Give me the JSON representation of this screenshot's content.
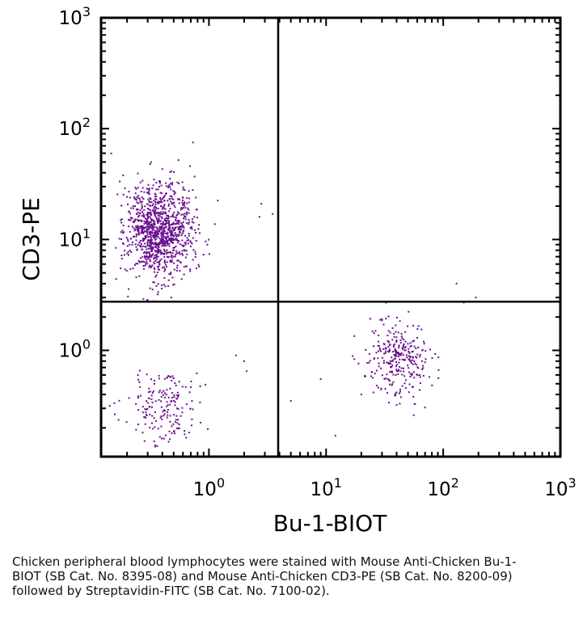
{
  "chart_data": {
    "type": "scatter",
    "title": "",
    "xlabel": "Bu-1-BIOT",
    "ylabel": "CD3-PE",
    "x_scale": "log",
    "y_scale": "log",
    "xlim": [
      0.12,
      1000
    ],
    "ylim": [
      0.11,
      1000
    ],
    "x_ticks": [
      {
        "value": 1,
        "base": "10",
        "exp": "0"
      },
      {
        "value": 10,
        "base": "10",
        "exp": "1"
      },
      {
        "value": 100,
        "base": "10",
        "exp": "2"
      },
      {
        "value": 1000,
        "base": "10",
        "exp": "3"
      }
    ],
    "y_ticks": [
      {
        "value": 1,
        "base": "10",
        "exp": "0"
      },
      {
        "value": 10,
        "base": "10",
        "exp": "1"
      },
      {
        "value": 100,
        "base": "10",
        "exp": "2"
      },
      {
        "value": 1000,
        "base": "10",
        "exp": "3"
      }
    ],
    "quadrant_gates": {
      "x": 3.9,
      "y": 2.75
    },
    "grid": false,
    "point_color": "#6a0f8e",
    "populations": [
      {
        "population": "CD3+ Bu-1-",
        "center": [
          0.38,
          12
        ],
        "spread_log10": [
          0.14,
          0.22
        ],
        "count": 1100
      },
      {
        "population": "CD3- Bu-1+",
        "center": [
          42,
          0.85
        ],
        "spread_log10": [
          0.14,
          0.17
        ],
        "count": 300
      },
      {
        "population": "CD3- Bu-1-",
        "center": [
          0.42,
          0.32
        ],
        "spread_log10": [
          0.17,
          0.17
        ],
        "count": 180
      }
    ],
    "outliers": [
      [
        0.55,
        52
      ],
      [
        0.73,
        75
      ],
      [
        2.8,
        21
      ],
      [
        3.5,
        17
      ],
      [
        2.7,
        16
      ],
      [
        130,
        4.0
      ],
      [
        190,
        3.0
      ],
      [
        150,
        2.7
      ],
      [
        5,
        0.35
      ],
      [
        9,
        0.55
      ],
      [
        12,
        0.17
      ],
      [
        20,
        0.4
      ],
      [
        1.7,
        0.9
      ],
      [
        2.1,
        0.65
      ],
      [
        2.0,
        0.8
      ]
    ]
  },
  "caption": "Chicken peripheral blood lymphocytes were stained with Mouse Anti-Chicken Bu-1-BIOT (SB Cat. No. 8395-08) and Mouse Anti-Chicken CD3-PE (SB Cat. No. 8200-09) followed by Streptavidin-FITC (SB Cat. No. 7100-02)."
}
